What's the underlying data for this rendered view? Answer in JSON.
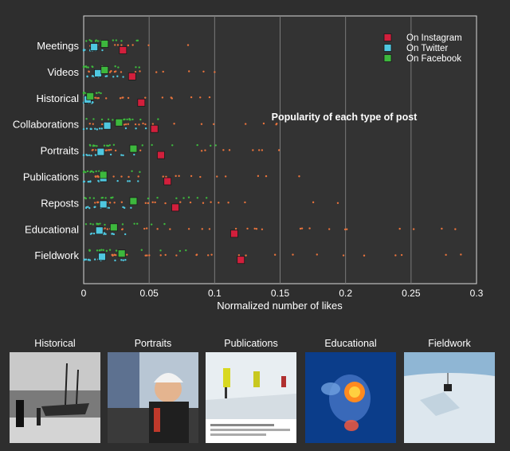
{
  "chart_data": {
    "type": "scatter",
    "title": "Popularity of each type of post",
    "xlabel": "Normalized number of likes",
    "ylabel": "",
    "xlim": [
      0,
      0.3
    ],
    "x_ticks": [
      "0",
      "0.05",
      "0.1",
      "0.15",
      "0.2",
      "0.25",
      "0.3"
    ],
    "x_tick_values": [
      0,
      0.05,
      0.1,
      0.15,
      0.2,
      0.25,
      0.3
    ],
    "categories": [
      "Meetings",
      "Videos",
      "Historical",
      "Collaborations",
      "Portraits",
      "Publications",
      "Reposts",
      "Educational",
      "Fieldwork"
    ],
    "grid": "vertical",
    "legend_position": "top-right",
    "series": [
      {
        "name": "On Instagram",
        "color": "#d21f3c",
        "dot_color": "#e8733c",
        "means": [
          0.03,
          0.037,
          0.044,
          0.054,
          0.059,
          0.064,
          0.07,
          0.115,
          0.12
        ]
      },
      {
        "name": "On Twitter",
        "color": "#4fc8e0",
        "dot_color": "#4fc8e0",
        "means": [
          0.008,
          0.011,
          0.003,
          0.018,
          0.013,
          0.015,
          0.015,
          0.012,
          0.014
        ]
      },
      {
        "name": "On Facebook",
        "color": "#3db83d",
        "dot_color": "#3db83d",
        "means": [
          0.016,
          0.016,
          0.005,
          0.027,
          0.038,
          0.015,
          0.038,
          0.023,
          0.029
        ]
      }
    ]
  },
  "gallery": {
    "items": [
      {
        "caption": "Historical"
      },
      {
        "caption": "Portraits"
      },
      {
        "caption": "Publications"
      },
      {
        "caption": "Educational"
      },
      {
        "caption": "Fieldwork"
      }
    ]
  }
}
